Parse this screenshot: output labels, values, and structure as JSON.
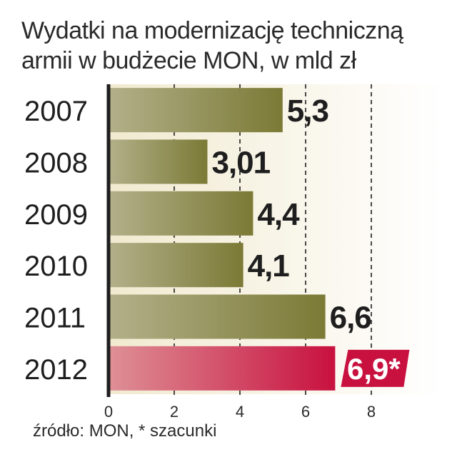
{
  "chart_data": {
    "type": "bar",
    "orientation": "horizontal",
    "title_lines": [
      "Wydatki na modernizację techniczną",
      "armii w budżecie MON, w mld zł"
    ],
    "categories": [
      "2007",
      "2008",
      "2009",
      "2010",
      "2011",
      "2012"
    ],
    "values": [
      5.3,
      3.01,
      4.4,
      4.1,
      6.6,
      6.9
    ],
    "value_labels": [
      "5,3",
      "3,01",
      "4,4",
      "4,1",
      "6,6",
      "6,9*"
    ],
    "highlight_index": 5,
    "xlim": [
      0,
      8
    ],
    "x_ticks": [
      0,
      2,
      4,
      6,
      8
    ],
    "grid": "dashed vertical lines at 2, 4, 6, 8",
    "source": "źródło: MON, * szacunki",
    "colors": {
      "bar": "#7b7a35",
      "bar_light": "#b3b08a",
      "highlight": "#c8113f",
      "highlight_light": "#de9096",
      "background_band": "#f7f3df",
      "label_box": "#c8113f"
    }
  }
}
